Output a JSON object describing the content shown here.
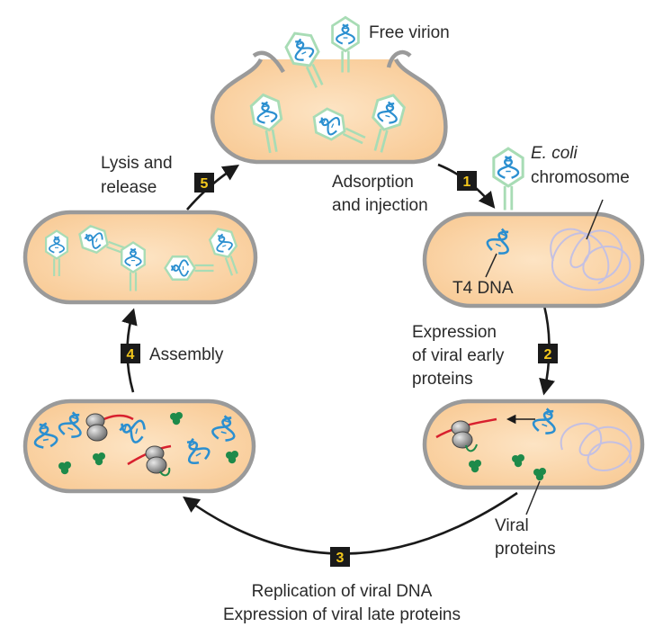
{
  "labels": {
    "free_virion": "Free virion",
    "adsorption_line1": "Adsorption",
    "adsorption_line2": "and injection",
    "ecoli_italic": "E. coli",
    "chromosome": "chromosome",
    "t4_dna": "T4 DNA",
    "expression_early_line1": "Expression",
    "expression_early_line2": "of viral early",
    "expression_early_line3": "proteins",
    "viral_proteins_line1": "Viral",
    "viral_proteins_line2": "proteins",
    "replication": "Replication of viral DNA",
    "expression_late": "Expression of viral late proteins",
    "assembly": "Assembly",
    "lysis_line1": "Lysis and",
    "lysis_line2": "release"
  },
  "steps": [
    "1",
    "2",
    "3",
    "4",
    "5"
  ],
  "colors": {
    "cell_fill": "#fbd9b0",
    "cell_outline": "#9a9a9a",
    "phage_green": "#a8dcb5",
    "dna_blue": "#2b8fd0",
    "chromosome_lilac": "#c4c0e2",
    "mrna_red": "#d8202e",
    "protein_green": "#1e8a4a",
    "badge_fill": "#1a1a1a",
    "badge_text": "#f4c81c"
  }
}
